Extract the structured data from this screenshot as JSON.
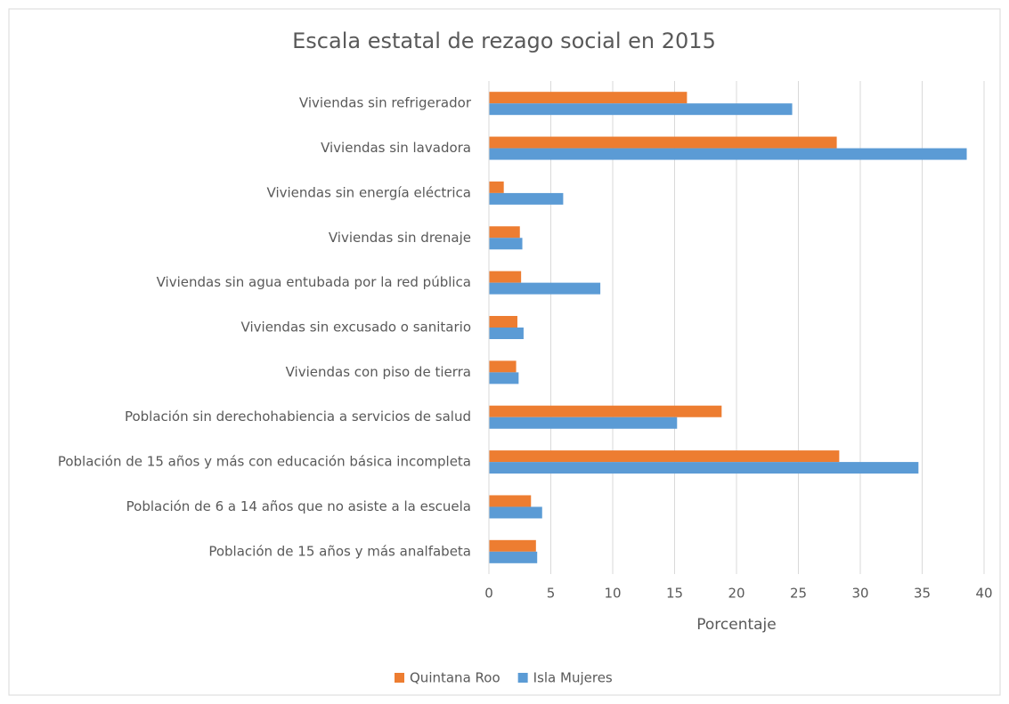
{
  "chart_data": {
    "type": "hbar",
    "title": "Escala estatal de rezago social en 2015",
    "xlabel": "Porcentaje",
    "categories": [
      "Viviendas sin refrigerador",
      "Viviendas sin lavadora",
      "Viviendas sin energía eléctrica",
      "Viviendas sin drenaje",
      "Viviendas sin agua entubada por la red pública",
      "Viviendas sin excusado o sanitario",
      "Viviendas con piso de tierra",
      "Población sin derechohabiencia a servicios de salud",
      "Población de 15 años y más con educación básica incompleta",
      "Población de 6 a 14 años que no asiste a la escuela",
      "Población de 15 años y más analfabeta"
    ],
    "series": [
      {
        "name": "Quintana Roo",
        "color": "#ed7d31",
        "values": [
          16.0,
          28.1,
          1.2,
          2.5,
          2.6,
          2.3,
          2.2,
          18.8,
          28.3,
          3.4,
          3.8
        ]
      },
      {
        "name": "Isla Mujeres",
        "color": "#5b9bd5",
        "values": [
          24.5,
          38.6,
          6.0,
          2.7,
          9.0,
          2.8,
          2.4,
          15.2,
          34.7,
          4.3,
          3.9
        ]
      }
    ],
    "xlim": [
      0,
      40
    ],
    "xticks": [
      0,
      5,
      10,
      15,
      20,
      25,
      30,
      35,
      40
    ],
    "grid": true,
    "legend": "bottom"
  }
}
